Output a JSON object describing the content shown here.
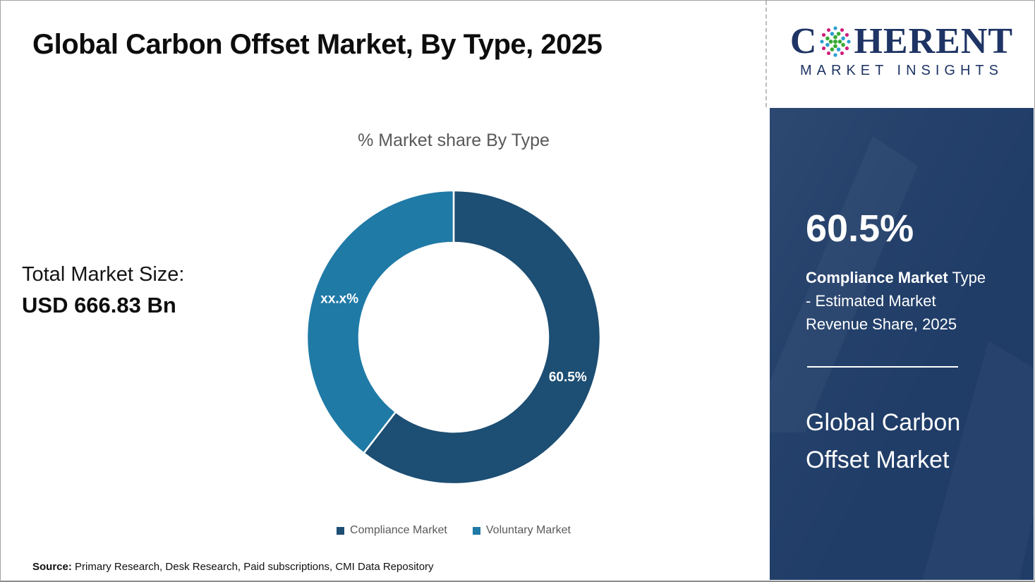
{
  "header": {
    "title": "Global Carbon Offset Market, By Type, 2025"
  },
  "logo": {
    "brand_first_letter": "C",
    "brand_rest": "HERENT",
    "subtitle": "MARKET INSIGHTS",
    "brand_color": "#1e3464"
  },
  "chart_data": {
    "type": "pie",
    "donut": true,
    "title": "% Market share By Type",
    "start_angle_deg": 0,
    "direction": "clockwise",
    "legend_position": "bottom",
    "slices": [
      {
        "label": "Compliance Market",
        "value": 60.5,
        "display": "60.5%",
        "color": "#1d4e73"
      },
      {
        "label": "Voluntary Market",
        "value": 39.5,
        "display": "xx.x%",
        "color": "#1f7aa6"
      }
    ]
  },
  "total_market": {
    "label": "Total Market Size:",
    "value": "USD 666.83 Bn"
  },
  "legend": {
    "items": [
      {
        "label": "Compliance Market",
        "color": "#1d4e73"
      },
      {
        "label": "Voluntary Market",
        "color": "#1f7aa6"
      }
    ]
  },
  "source": {
    "label": "Source:",
    "text": " Primary Research, Desk Research, Paid subscriptions, CMI Data Repository"
  },
  "sidebar": {
    "stat": "60.5%",
    "desc_bold": "Compliance Market",
    "desc_line1_rest": " Type",
    "desc_line2": "- Estimated Market",
    "desc_line3": "Revenue Share, 2025",
    "panel_title_line1": "Global Carbon",
    "panel_title_line2": "Offset Market",
    "panel_color": "#203d68"
  },
  "colors": {
    "title_text": "#0d0d0d",
    "muted_text": "#595959",
    "compliance": "#1d4e73",
    "voluntary": "#1f7aa6",
    "panel_navy": "#203d68",
    "logo_navy": "#1e3464"
  }
}
